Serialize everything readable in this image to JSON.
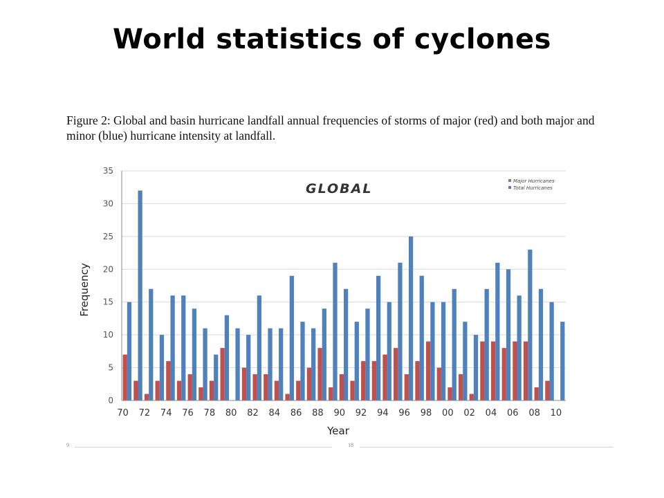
{
  "slide": {
    "title": "World statistics of cyclones"
  },
  "figure": {
    "caption": "Figure 2: Global and basin hurricane landfall annual frequencies of storms of major (red) and both major and minor (blue) hurricane intensity at landfall.",
    "footer_left": "9",
    "footer_center": "18"
  },
  "chart_data": {
    "type": "bar",
    "title": "GLOBAL",
    "xlabel": "Year",
    "ylabel": "Frequency",
    "ylim": [
      0,
      35
    ],
    "yticks": [
      0,
      5,
      10,
      15,
      20,
      25,
      30,
      35
    ],
    "grid": true,
    "legend_position": "top-right",
    "x": [
      "70",
      "71",
      "72",
      "73",
      "74",
      "75",
      "76",
      "77",
      "78",
      "79",
      "80",
      "81",
      "82",
      "83",
      "84",
      "85",
      "86",
      "87",
      "88",
      "89",
      "90",
      "91",
      "92",
      "93",
      "94",
      "95",
      "96",
      "97",
      "98",
      "99",
      "00",
      "01",
      "02",
      "03",
      "04",
      "05",
      "06",
      "07",
      "08",
      "09",
      "10"
    ],
    "xtick_labels": [
      "70",
      "72",
      "74",
      "76",
      "78",
      "80",
      "82",
      "84",
      "86",
      "88",
      "90",
      "92",
      "94",
      "96",
      "98",
      "00",
      "02",
      "04",
      "06",
      "08",
      "10"
    ],
    "series": [
      {
        "name": "Total Hurricanes",
        "color": "#4f81bd",
        "values": [
          15,
          32,
          17,
          10,
          16,
          16,
          14,
          11,
          7,
          13,
          11,
          10,
          16,
          11,
          11,
          19,
          12,
          11,
          14,
          21,
          17,
          12,
          14,
          19,
          15,
          21,
          25,
          19,
          15,
          15,
          17,
          12,
          10,
          17,
          21,
          20,
          16,
          23,
          17,
          15,
          12
        ]
      },
      {
        "name": "Major Hurricanes",
        "color": "#c0504d",
        "values": [
          7,
          3,
          1,
          3,
          6,
          3,
          4,
          2,
          3,
          8,
          0,
          5,
          4,
          4,
          3,
          1,
          3,
          5,
          8,
          2,
          4,
          3,
          6,
          6,
          7,
          8,
          4,
          6,
          9,
          5,
          2,
          4,
          1,
          9,
          9,
          8,
          9,
          9,
          2,
          3,
          0
        ]
      }
    ]
  }
}
